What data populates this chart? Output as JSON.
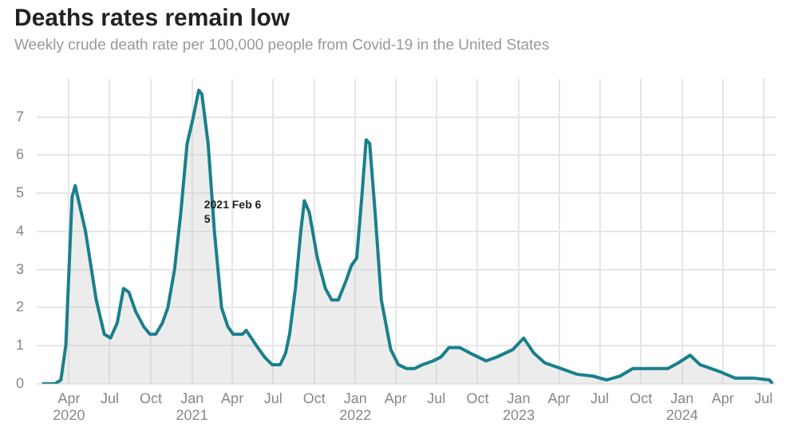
{
  "chart_data": {
    "type": "area",
    "title": "Deaths rates remain low",
    "subtitle": "Weekly crude death rate per 100,000 people from Covid-19 in the United States",
    "x": [
      "2020-02-01",
      "2020-03-01",
      "2020-03-14",
      "2020-03-25",
      "2020-04-08",
      "2020-04-15",
      "2020-05-08",
      "2020-06-01",
      "2020-06-19",
      "2020-07-03",
      "2020-07-18",
      "2020-08-01",
      "2020-08-13",
      "2020-08-28",
      "2020-09-15",
      "2020-09-29",
      "2020-10-12",
      "2020-10-27",
      "2020-11-08",
      "2020-11-23",
      "2020-12-07",
      "2020-12-21",
      "2021-01-02",
      "2021-01-16",
      "2021-01-23",
      "2021-02-06",
      "2021-02-20",
      "2021-03-08",
      "2021-03-22",
      "2021-04-03",
      "2021-04-24",
      "2021-05-02",
      "2021-05-25",
      "2021-06-12",
      "2021-06-29",
      "2021-07-17",
      "2021-07-29",
      "2021-08-07",
      "2021-08-20",
      "2021-09-01",
      "2021-09-09",
      "2021-09-20",
      "2021-10-08",
      "2021-10-26",
      "2021-11-09",
      "2021-11-24",
      "2021-12-11",
      "2021-12-23",
      "2022-01-04",
      "2022-01-16",
      "2022-01-25",
      "2022-02-02",
      "2022-02-14",
      "2022-02-28",
      "2022-03-21",
      "2022-04-07",
      "2022-04-25",
      "2022-05-13",
      "2022-05-31",
      "2022-06-24",
      "2022-07-11",
      "2022-07-29",
      "2022-08-22",
      "2022-09-15",
      "2022-10-20",
      "2022-11-13",
      "2022-12-19",
      "2023-01-12",
      "2023-02-04",
      "2023-02-28",
      "2023-04-05",
      "2023-05-11",
      "2023-06-16",
      "2023-07-16",
      "2023-08-15",
      "2023-09-13",
      "2023-10-25",
      "2023-11-30",
      "2023-12-24",
      "2024-01-19",
      "2024-02-10",
      "2024-03-05",
      "2024-03-29",
      "2024-04-28",
      "2024-06-08",
      "2024-07-14",
      "2024-07-21"
    ],
    "series": [
      {
        "color": "#1a7f8c",
        "values": [
          0,
          0,
          0.1,
          1,
          4.9,
          5.2,
          4,
          2.2,
          1.3,
          1.2,
          1.6,
          2.5,
          2.4,
          1.9,
          1.5,
          1.3,
          1.3,
          1.6,
          2,
          3,
          4.5,
          6.3,
          6.9,
          7.7,
          7.6,
          6.3,
          4,
          2,
          1.5,
          1.3,
          1.3,
          1.4,
          1,
          0.7,
          0.5,
          0.5,
          0.8,
          1.3,
          2.5,
          4,
          4.8,
          4.5,
          3.3,
          2.5,
          2.2,
          2.2,
          2.7,
          3.1,
          3.3,
          5,
          6.4,
          6.3,
          4.5,
          2.2,
          0.9,
          0.5,
          0.4,
          0.4,
          0.5,
          0.6,
          0.7,
          0.95,
          0.95,
          0.8,
          0.6,
          0.7,
          0.9,
          1.2,
          0.8,
          0.55,
          0.4,
          0.25,
          0.2,
          0.1,
          0.2,
          0.4,
          0.4,
          0.4,
          0.55,
          0.75,
          0.5,
          0.4,
          0.3,
          0.15,
          0.15,
          0.1,
          0
        ]
      }
    ],
    "xlim": [
      "2020-01-20",
      "2024-07-28"
    ],
    "xticks": [
      {
        "value": "2020-04-01",
        "label": "Apr 2020"
      },
      {
        "value": "2020-07-01",
        "label": "Jul"
      },
      {
        "value": "2020-10-01",
        "label": "Oct"
      },
      {
        "value": "2021-01-01",
        "label": "Jan 2021"
      },
      {
        "value": "2021-04-01",
        "label": "Apr"
      },
      {
        "value": "2021-07-01",
        "label": "Jul"
      },
      {
        "value": "2021-10-01",
        "label": "Oct"
      },
      {
        "value": "2022-01-01",
        "label": "Jan 2022"
      },
      {
        "value": "2022-04-01",
        "label": "Apr"
      },
      {
        "value": "2022-07-01",
        "label": "Jul"
      },
      {
        "value": "2022-10-01",
        "label": "Oct"
      },
      {
        "value": "2023-01-01",
        "label": "Jan 2023"
      },
      {
        "value": "2023-04-01",
        "label": "Apr"
      },
      {
        "value": "2023-07-01",
        "label": "Jul"
      },
      {
        "value": "2023-10-01",
        "label": "Oct"
      },
      {
        "value": "2024-01-01",
        "label": "Jan 2024"
      },
      {
        "value": "2024-04-01",
        "label": "Apr"
      },
      {
        "value": "2024-07-01",
        "label": "Jul"
      }
    ],
    "ylim": [
      0,
      8
    ],
    "yticks": [
      0,
      1,
      2,
      3,
      4,
      5,
      6,
      7
    ],
    "grid": true,
    "legend": false,
    "marker": "none",
    "line_style": "solid",
    "annotations": [
      "2021 Feb 6",
      "5"
    ]
  }
}
